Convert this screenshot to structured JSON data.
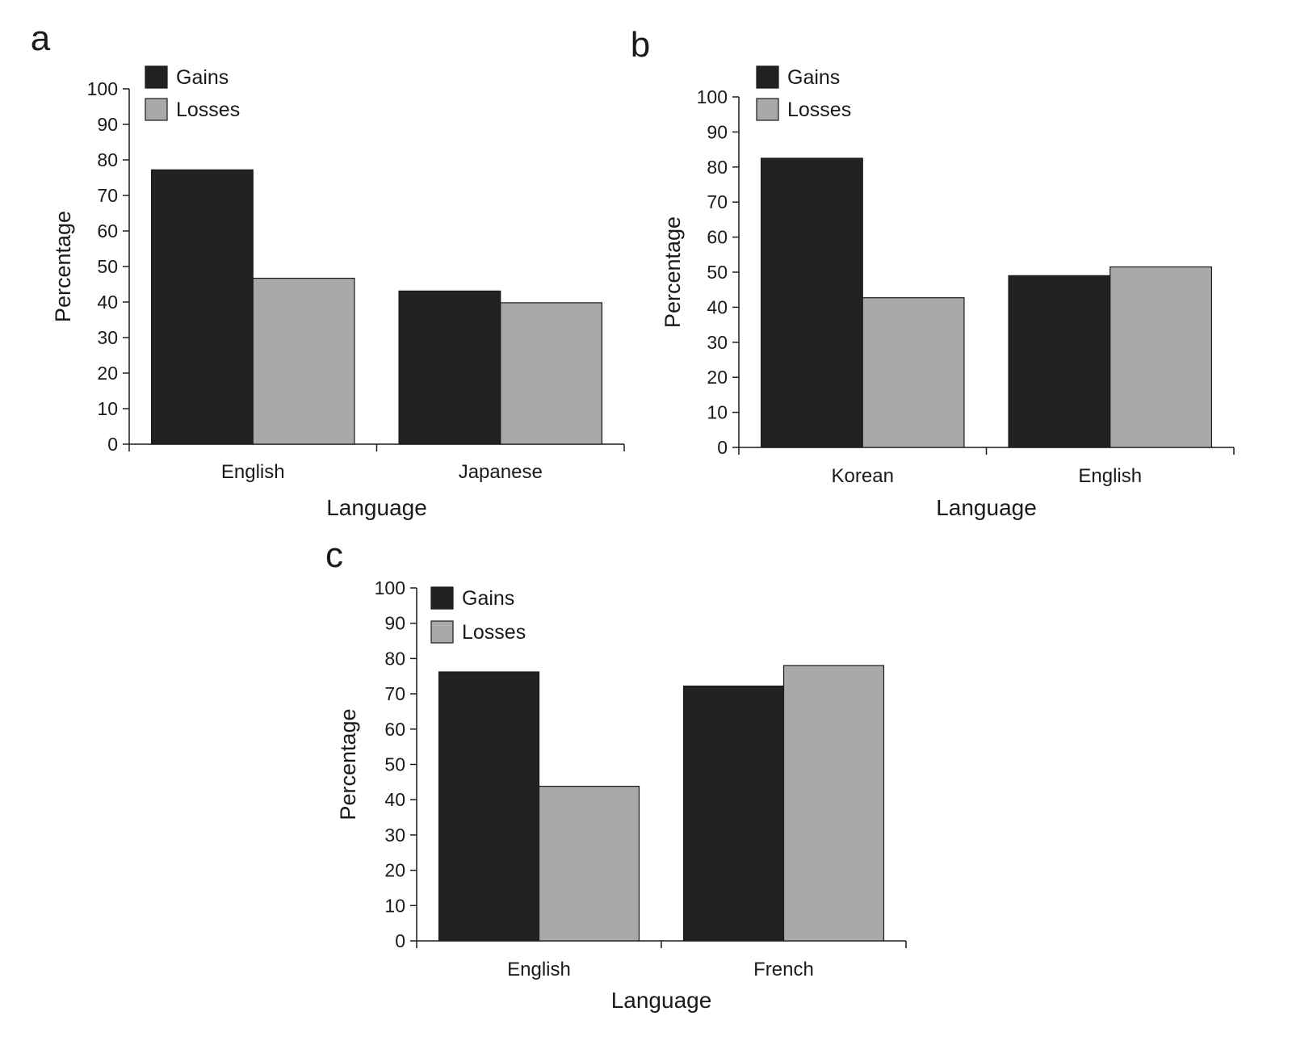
{
  "colors": {
    "gains": "#222222",
    "losses": "#a8a9ab",
    "axis": "#1a1a1a",
    "background": "#ffffff"
  },
  "chart_data": [
    {
      "panel": "a",
      "type": "bar",
      "categories": [
        "English",
        "Japanese"
      ],
      "series": [
        {
          "name": "Gains",
          "values": [
            77.2,
            43.1
          ]
        },
        {
          "name": "Losses",
          "values": [
            46.7,
            39.8
          ]
        }
      ],
      "xlabel": "Language",
      "ylabel": "Percentage",
      "ylim": [
        0,
        100
      ],
      "yticks": [
        0,
        10,
        20,
        30,
        40,
        50,
        60,
        70,
        80,
        90,
        100
      ],
      "legend": "top-left",
      "grid": false
    },
    {
      "panel": "b",
      "type": "bar",
      "categories": [
        "Korean",
        "English"
      ],
      "series": [
        {
          "name": "Gains",
          "values": [
            82.5,
            49.0
          ]
        },
        {
          "name": "Losses",
          "values": [
            42.7,
            51.5
          ]
        }
      ],
      "xlabel": "Language",
      "ylabel": "Percentage",
      "ylim": [
        0,
        100
      ],
      "yticks": [
        0,
        10,
        20,
        30,
        40,
        50,
        60,
        70,
        80,
        90,
        100
      ],
      "legend": "top-left",
      "grid": false
    },
    {
      "panel": "c",
      "type": "bar",
      "categories": [
        "English",
        "French"
      ],
      "series": [
        {
          "name": "Gains",
          "values": [
            76.2,
            72.2
          ]
        },
        {
          "name": "Losses",
          "values": [
            43.8,
            78.0
          ]
        }
      ],
      "xlabel": "Language",
      "ylabel": "Percentage",
      "ylim": [
        0,
        100
      ],
      "yticks": [
        0,
        10,
        20,
        30,
        40,
        50,
        60,
        70,
        80,
        90,
        100
      ],
      "legend": "top-left",
      "grid": false
    }
  ]
}
